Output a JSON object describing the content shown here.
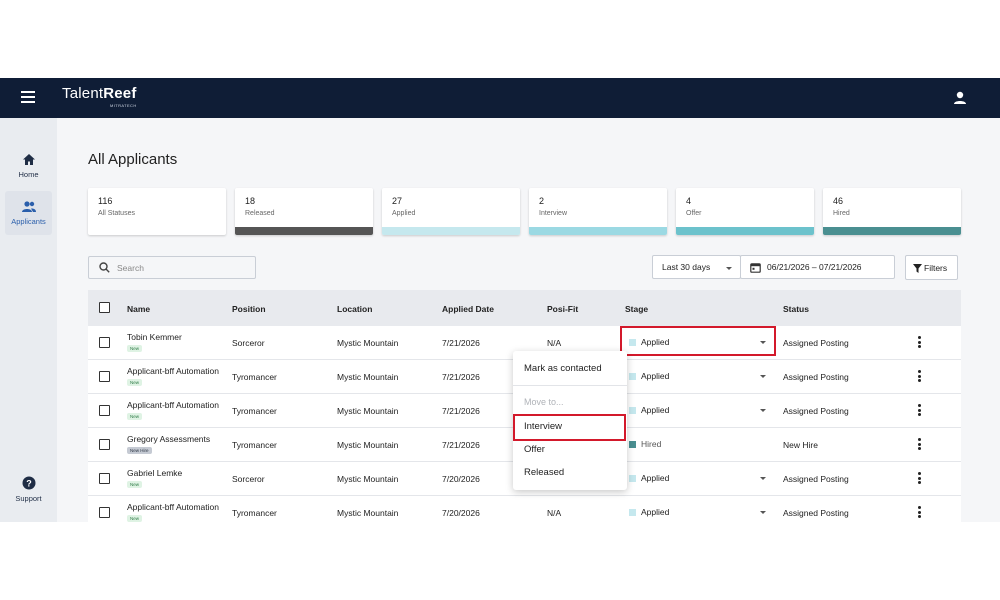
{
  "header": {
    "logo_text": "Talent",
    "logo_bold": "Reef",
    "logo_sub": "MITRATECH"
  },
  "sidebar": {
    "items": [
      {
        "label": "Home",
        "icon": "home-icon"
      },
      {
        "label": "Applicants",
        "icon": "people-icon",
        "active": true
      }
    ],
    "support_label": "Support"
  },
  "page_title": "All Applicants",
  "stats": [
    {
      "count": "116",
      "label": "All Statuses",
      "color": ""
    },
    {
      "count": "18",
      "label": "Released",
      "color": "#555555"
    },
    {
      "count": "27",
      "label": "Applied",
      "color": "#c5e8ee"
    },
    {
      "count": "2",
      "label": "Interview",
      "color": "#9bd9e3"
    },
    {
      "count": "4",
      "label": "Offer",
      "color": "#6cc2cc"
    },
    {
      "count": "46",
      "label": "Hired",
      "color": "#4a8f91"
    }
  ],
  "search": {
    "placeholder": "Search"
  },
  "range_select": {
    "value": "Last 30 days"
  },
  "date_range": {
    "value": "06/21/2026 – 07/21/2026"
  },
  "filters_label": "Filters",
  "table": {
    "headers": [
      "Name",
      "Position",
      "Location",
      "Applied Date",
      "Posi-Fit",
      "Stage",
      "Status"
    ],
    "rows": [
      {
        "name": "Tobin Kemmer",
        "badge": "New",
        "position": "Sorceror",
        "location": "Mystic Mountain",
        "applied": "7/21/2026",
        "fit": "N/A",
        "stage": "Applied",
        "stage_color": "#c5e8ee",
        "status": "Assigned Posting"
      },
      {
        "name": "Applicant-bff Automation",
        "badge": "New",
        "position": "Tyromancer",
        "location": "Mystic Mountain",
        "applied": "7/21/2026",
        "fit": "",
        "stage": "Applied",
        "stage_color": "#c5e8ee",
        "status": "Assigned Posting"
      },
      {
        "name": "Applicant-bff Automation",
        "badge": "New",
        "position": "Tyromancer",
        "location": "Mystic Mountain",
        "applied": "7/21/2026",
        "fit": "",
        "stage": "Applied",
        "stage_color": "#c5e8ee",
        "status": "Assigned Posting"
      },
      {
        "name": "Gregory Assessments",
        "badge": "New Hire",
        "position": "Tyromancer",
        "location": "Mystic Mountain",
        "applied": "7/21/2026",
        "fit": "",
        "stage": "Hired",
        "stage_color": "#4a8f91",
        "status": "New Hire"
      },
      {
        "name": "Gabriel Lemke",
        "badge": "New",
        "position": "Sorceror",
        "location": "Mystic Mountain",
        "applied": "7/20/2026",
        "fit": "",
        "stage": "Applied",
        "stage_color": "#c5e8ee",
        "status": "Assigned Posting"
      },
      {
        "name": "Applicant-bff Automation",
        "badge": "New",
        "position": "Tyromancer",
        "location": "Mystic Mountain",
        "applied": "7/20/2026",
        "fit": "N/A",
        "stage": "Applied",
        "stage_color": "#c5e8ee",
        "status": "Assigned Posting"
      }
    ]
  },
  "stage_menu": {
    "mark_contacted": "Mark as contacted",
    "move_to": "Move to...",
    "options": [
      "Interview",
      "Offer",
      "Released"
    ]
  }
}
